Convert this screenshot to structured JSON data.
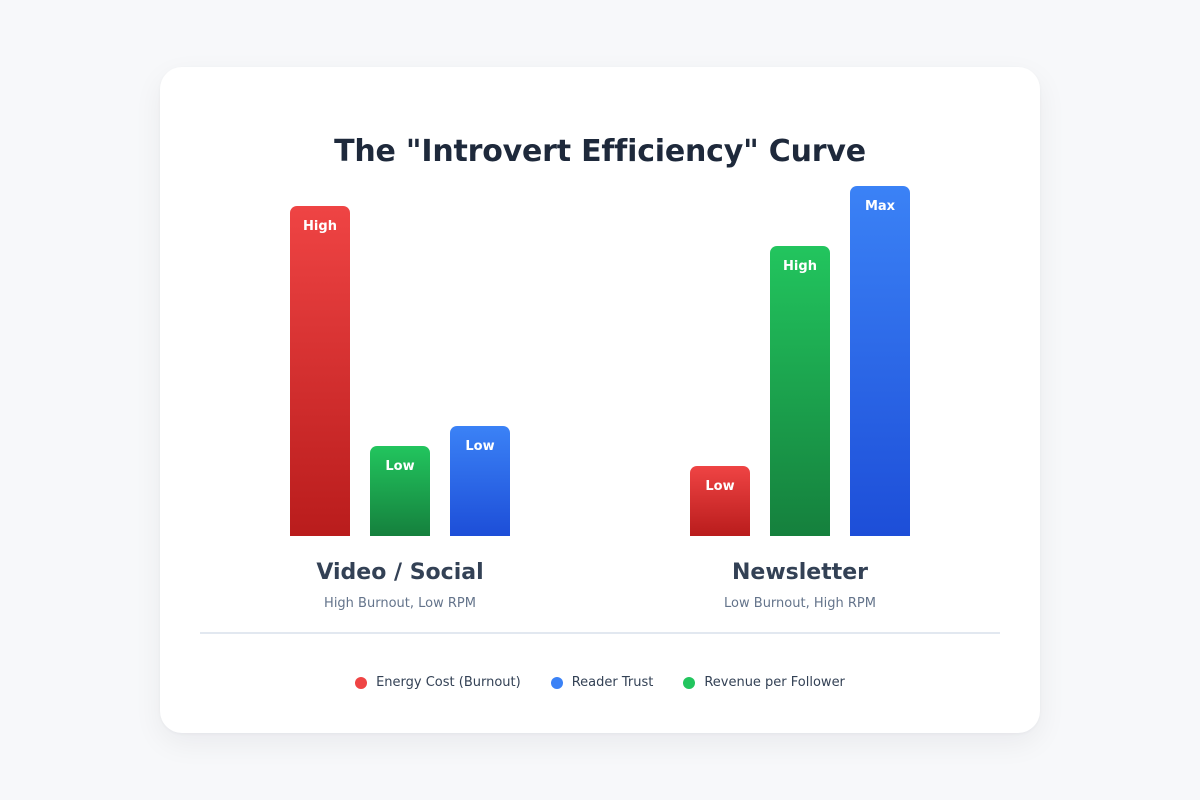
{
  "chart_data": {
    "type": "bar",
    "title": "The \"Introvert Efficiency\" Curve",
    "categories": [
      {
        "name": "Video / Social",
        "subtitle": "High Burnout, Low RPM"
      },
      {
        "name": "Newsletter",
        "subtitle": "Low Burnout, High RPM"
      }
    ],
    "series": [
      {
        "name": "Energy Cost (Burnout)",
        "color": "#ef4444",
        "color_dark": "#b91c1c",
        "values": [
          33,
          7
        ],
        "labels": [
          "High",
          "Low"
        ]
      },
      {
        "name": "Revenue per Follower",
        "color": "#22c55e",
        "color_dark": "#15803d",
        "values": [
          9,
          29
        ],
        "labels": [
          "Low",
          "High"
        ]
      },
      {
        "name": "Reader Trust",
        "color": "#3b82f6",
        "color_dark": "#1d4ed8",
        "values": [
          11,
          35
        ],
        "labels": [
          "Low",
          "Max"
        ]
      }
    ],
    "legend_order": [
      "Energy Cost (Burnout)",
      "Reader Trust",
      "Revenue per Follower"
    ],
    "legend_position": "bottom-center",
    "ylim": [
      0,
      35
    ],
    "grid": false
  }
}
